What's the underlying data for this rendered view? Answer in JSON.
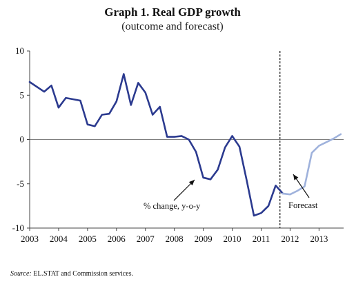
{
  "chart_data": {
    "type": "line",
    "title": "Graph 1. Real GDP growth",
    "subtitle": "(outcome and forecast)",
    "xlabel": "",
    "ylabel": "",
    "xlim": [
      2003.0,
      2013.85
    ],
    "ylim": [
      -10,
      10
    ],
    "y_ticks": [
      10,
      5,
      0,
      -5,
      -10
    ],
    "x_tick_labels": [
      "2003",
      "2004",
      "2005",
      "2006",
      "2007",
      "2008",
      "2009",
      "2010",
      "2011",
      "2012",
      "2013"
    ],
    "grid": false,
    "vline_x": 2011.65,
    "series": [
      {
        "name": "outcome",
        "color": "#2b3a8f",
        "points": [
          [
            2003.0,
            6.5
          ],
          [
            2003.5,
            5.4
          ],
          [
            2003.75,
            6.1
          ],
          [
            2004.0,
            3.6
          ],
          [
            2004.25,
            4.7
          ],
          [
            2004.75,
            4.4
          ],
          [
            2005.0,
            1.7
          ],
          [
            2005.25,
            1.5
          ],
          [
            2005.5,
            2.8
          ],
          [
            2005.75,
            2.9
          ],
          [
            2006.0,
            4.3
          ],
          [
            2006.25,
            7.4
          ],
          [
            2006.5,
            3.9
          ],
          [
            2006.75,
            6.4
          ],
          [
            2007.0,
            5.3
          ],
          [
            2007.25,
            2.8
          ],
          [
            2007.5,
            3.7
          ],
          [
            2007.75,
            0.3
          ],
          [
            2008.0,
            0.3
          ],
          [
            2008.25,
            0.4
          ],
          [
            2008.5,
            0.0
          ],
          [
            2008.75,
            -1.4
          ],
          [
            2009.0,
            -4.3
          ],
          [
            2009.25,
            -4.5
          ],
          [
            2009.5,
            -3.4
          ],
          [
            2009.75,
            -0.9
          ],
          [
            2010.0,
            0.4
          ],
          [
            2010.25,
            -0.8
          ],
          [
            2010.5,
            -4.6
          ],
          [
            2010.75,
            -8.6
          ],
          [
            2011.0,
            -8.3
          ],
          [
            2011.25,
            -7.5
          ],
          [
            2011.5,
            -5.2
          ],
          [
            2011.75,
            -6.1
          ]
        ]
      },
      {
        "name": "forecast",
        "color": "#9fb2dc",
        "points": [
          [
            2011.75,
            -6.1
          ],
          [
            2012.0,
            -6.2
          ],
          [
            2012.25,
            -5.8
          ],
          [
            2012.5,
            -5.3
          ],
          [
            2012.75,
            -1.5
          ],
          [
            2013.0,
            -0.7
          ],
          [
            2013.25,
            -0.3
          ],
          [
            2013.5,
            0.1
          ],
          [
            2013.75,
            0.6
          ]
        ]
      }
    ],
    "annotations": [
      {
        "text": "% change, y-o-y",
        "x": 2008.8,
        "y": -6.9
      },
      {
        "text": "Forecast",
        "x": 2012.5,
        "y": -6.9
      }
    ]
  },
  "source": {
    "label": "Source:",
    "text": "EL.STAT and Commission services."
  }
}
